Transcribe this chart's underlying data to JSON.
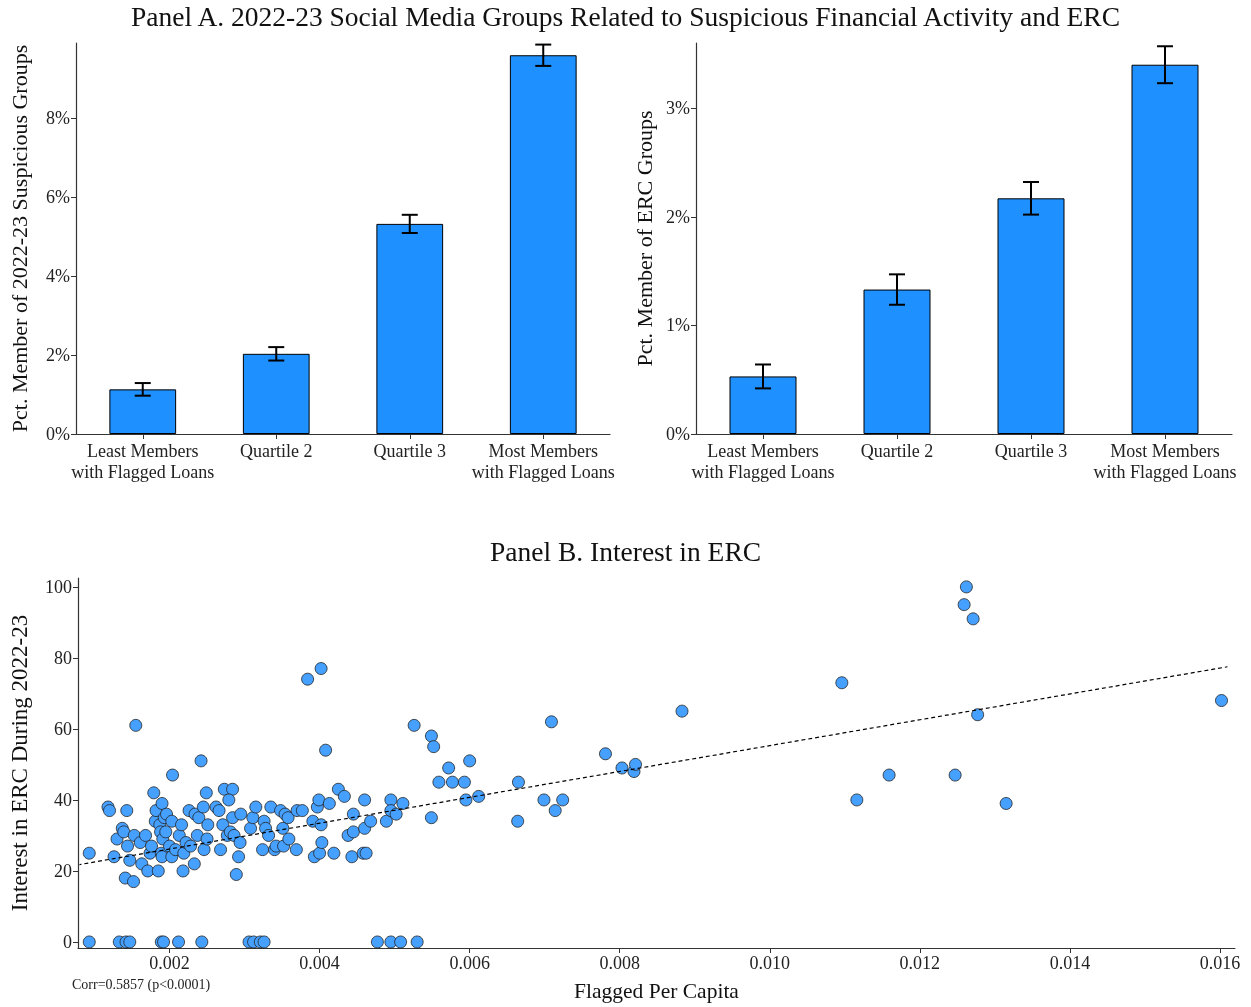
{
  "chart_data": [
    {
      "type": "bar",
      "title": "Panel A. 2022-23 Social Media Groups Related to Suspicious Financial Activity and ERC",
      "ylabel": "Pct. Member of 2022-23 Suspicious Groups",
      "categories": [
        "Least Members with Flagged Loans",
        "Quartile 2",
        "Quartile 3",
        "Most Members with Flagged Loans"
      ],
      "values": [
        1.13,
        2.03,
        5.32,
        9.59
      ],
      "errors": [
        0.16,
        0.17,
        0.23,
        0.27
      ],
      "color": "#1e90ff",
      "ylim": [
        0,
        9.9
      ],
      "yticks": [
        {
          "value": 0,
          "label": "0%"
        },
        {
          "value": 2,
          "label": "2%"
        },
        {
          "value": 4,
          "label": "4%"
        },
        {
          "value": 6,
          "label": "6%"
        },
        {
          "value": 8,
          "label": "8%"
        }
      ]
    },
    {
      "type": "bar",
      "ylabel": "Pct. Member of ERC Groups",
      "categories": [
        "Least Members with Flagged Loans",
        "Quartile 2",
        "Quartile 3",
        "Most Members with Flagged Loans"
      ],
      "values": [
        0.53,
        1.33,
        2.17,
        3.4
      ],
      "errors": [
        0.11,
        0.14,
        0.15,
        0.17
      ],
      "color": "#1e90ff",
      "ylim": [
        0,
        3.6
      ],
      "yticks": [
        {
          "value": 0,
          "label": "0%"
        },
        {
          "value": 1,
          "label": "1%"
        },
        {
          "value": 2,
          "label": "2%"
        },
        {
          "value": 3,
          "label": "3%"
        }
      ]
    },
    {
      "type": "scatter",
      "title": "Panel B. Interest in ERC",
      "xlabel": "Flagged Per Capita",
      "ylabel": "Interest in ERC During 2022-23",
      "annotations": [
        "Corr=0.5857 (p<0.0001)"
      ],
      "xlim": [
        0.00078,
        0.0162
      ],
      "ylim": [
        -1.7,
        102.5
      ],
      "xticks": [
        0.002,
        0.004,
        0.006,
        0.008,
        {
          "value": 0.01,
          "label": "0.010"
        },
        0.012,
        0.014,
        0.016
      ],
      "yticks": [
        0,
        20,
        40,
        60,
        80,
        100
      ],
      "marker": "circle",
      "series": [
        {
          "type": "scatter",
          "color": "#45a0ff",
          "x": [
            0.00093,
            0.00133,
            0.00142,
            0.00147,
            0.00189,
            0.00192,
            0.00212,
            0.00243,
            0.00306,
            0.00312,
            0.00321,
            0.00326,
            0.00477,
            0.00495,
            0.00508,
            0.0053,
            0.00093,
            0.00118,
            0.0012,
            0.00126,
            0.0013,
            0.00137,
            0.00139,
            0.00141,
            0.00144,
            0.00143,
            0.00147,
            0.00152,
            0.00153,
            0.00155,
            0.00161,
            0.00163,
            0.00168,
            0.00171,
            0.00174,
            0.00176,
            0.00179,
            0.00181,
            0.00182,
            0.00185,
            0.00187,
            0.00188,
            0.0019,
            0.00189,
            0.0019,
            0.00191,
            0.00193,
            0.00195,
            0.00196,
            0.002,
            0.00203,
            0.00204,
            0.00203,
            0.00208,
            0.00213,
            0.00216,
            0.00218,
            0.00219,
            0.00222,
            0.00226,
            0.00228,
            0.00233,
            0.00234,
            0.00237,
            0.00239,
            0.00242,
            0.00245,
            0.00246,
            0.00249,
            0.0025,
            0.00251,
            0.00262,
            0.00266,
            0.00268,
            0.00271,
            0.00273,
            0.00284,
            0.00279,
            0.00277,
            0.00281,
            0.00284,
            0.00286,
            0.00289,
            0.00292,
            0.00294,
            0.00295,
            0.00308,
            0.00311,
            0.00315,
            0.00324,
            0.00326,
            0.00328,
            0.00332,
            0.00335,
            0.0034,
            0.00342,
            0.00348,
            0.00351,
            0.00352,
            0.00354,
            0.00358,
            0.00359,
            0.00369,
            0.0037,
            0.00377,
            0.00391,
            0.00393,
            0.00397,
            0.00399,
            0.004,
            0.00402,
            0.00403,
            0.00402,
            0.00384,
            0.00408,
            0.00413,
            0.00419,
            0.00425,
            0.00433,
            0.00438,
            0.00443,
            0.00445,
            0.00445,
            0.0046,
            0.0046,
            0.00458,
            0.00462,
            0.00468,
            0.00489,
            0.00495,
            0.00495,
            0.00502,
            0.00511,
            0.00526,
            0.00549,
            0.00552,
            0.00549,
            0.00572,
            0.00559,
            0.00577,
            0.00593,
            0.006,
            0.00595,
            0.00612,
            0.00665,
            0.00664,
            0.00699,
            0.00709,
            0.00714,
            0.00724,
            0.00781,
            0.00803,
            0.00819,
            0.00821,
            0.00883,
            0.01096,
            0.01262,
            0.01259,
            0.01271,
            0.01277,
            0.01602,
            0.01159,
            0.01247,
            0.01116,
            0.01315
          ],
          "values": [
            0,
            0,
            0,
            0,
            0,
            0,
            0,
            0,
            0,
            0,
            0,
            0,
            0,
            0,
            0,
            0,
            25,
            38,
            37,
            24,
            29,
            32,
            31,
            18,
            27,
            37,
            23,
            17,
            30,
            61,
            28,
            22,
            30,
            20,
            25,
            27,
            42,
            34,
            37,
            20,
            33,
            31,
            39,
            25,
            24,
            29,
            35,
            31,
            36,
            27,
            24,
            47,
            34,
            26,
            30,
            33,
            20,
            25,
            28,
            37,
            27,
            22,
            36,
            30,
            35,
            51,
            38,
            26,
            42,
            29,
            33,
            38,
            37,
            26,
            33,
            43,
            43,
            40,
            30,
            31,
            35,
            30,
            19,
            24,
            28,
            36,
            32,
            35,
            38,
            26,
            34,
            32,
            30,
            38,
            26,
            27,
            37,
            32,
            27,
            36,
            35,
            29,
            26,
            37,
            37,
            34,
            24,
            38,
            40,
            25,
            33,
            28,
            77,
            74,
            54,
            39,
            25,
            43,
            41,
            30,
            24,
            36,
            31,
            40,
            32,
            25,
            25,
            34,
            34,
            40,
            37,
            36,
            39,
            61,
            58,
            55,
            35,
            49,
            45,
            45,
            45,
            51,
            40,
            41,
            45,
            34,
            40,
            62,
            37,
            40,
            53,
            49,
            48,
            50,
            65,
            73,
            100,
            95,
            91,
            64,
            68,
            47,
            47,
            40,
            39
          ]
        },
        {
          "type": "line",
          "color": "#000000",
          "line_style": "dashed",
          "marker": "none",
          "x": [
            0.0008,
            0.0161
          ],
          "values": [
            21.8,
            77.5
          ]
        }
      ]
    }
  ]
}
